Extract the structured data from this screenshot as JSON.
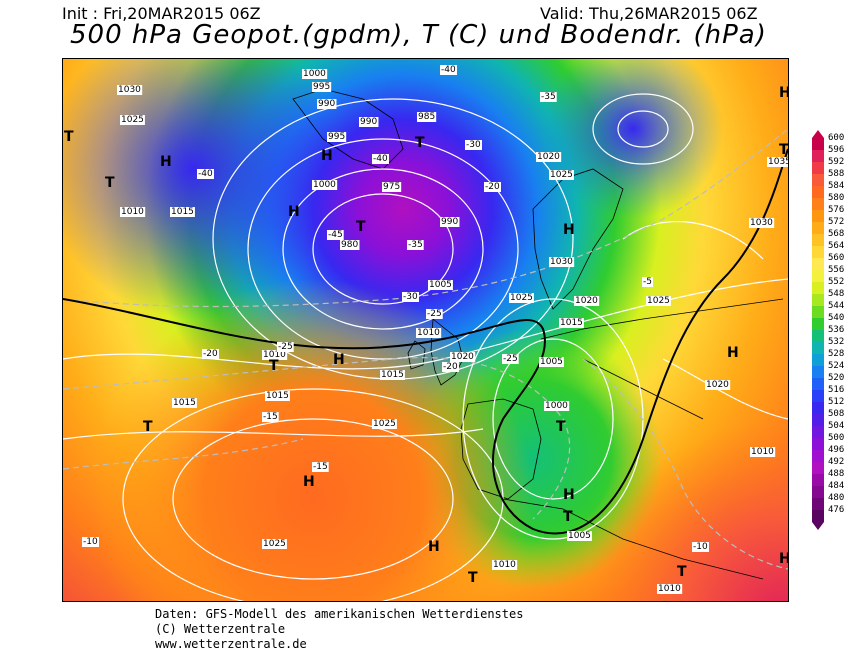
{
  "header": {
    "init": "Init : Fri,20MAR2015 06Z",
    "valid": "Valid: Thu,26MAR2015 06Z",
    "title": "500 hPa Geopot.(gpdm), T (C) und Bodendr. (hPa)"
  },
  "legend": {
    "values": [
      "600",
      "596",
      "592",
      "588",
      "584",
      "580",
      "576",
      "572",
      "568",
      "564",
      "560",
      "556",
      "552",
      "548",
      "544",
      "540",
      "536",
      "532",
      "528",
      "524",
      "520",
      "516",
      "512",
      "508",
      "504",
      "500",
      "496",
      "492",
      "488",
      "484",
      "480",
      "476"
    ],
    "colors": [
      "#c8004a",
      "#e0205a",
      "#f03a48",
      "#f85a3a",
      "#ff6a20",
      "#ff7f1a",
      "#ff9612",
      "#ffac18",
      "#ffc224",
      "#ffd838",
      "#ffe850",
      "#f4f040",
      "#d8f020",
      "#a8e820",
      "#6cdc20",
      "#30cc30",
      "#14c078",
      "#10b4b0",
      "#10a0d8",
      "#1880f0",
      "#2060f8",
      "#2a40f8",
      "#3828f0",
      "#5020e8",
      "#7018e0",
      "#8c10d8",
      "#a010d0",
      "#b010c0",
      "#9a0aa8",
      "#840890",
      "#6e0678",
      "#580460"
    ]
  },
  "map": {
    "pressure_labels": [
      "1000",
      "995",
      "990",
      "1030",
      "1025",
      "1010",
      "1015",
      "995",
      "1000",
      "975",
      "990",
      "985",
      "980",
      "990",
      "1005",
      "1020",
      "1025",
      "1030",
      "1025",
      "1020",
      "1015",
      "1010",
      "1005",
      "1025",
      "1015",
      "1010",
      "1020",
      "1000",
      "1005",
      "1010",
      "1020",
      "1015",
      "1015",
      "1025",
      "1025",
      "1010",
      "1010",
      "1030",
      "1035"
    ],
    "temp_labels": [
      "-40",
      "-40",
      "-35",
      "-30",
      "-25",
      "-20",
      "-15",
      "-10",
      "-25",
      "-30",
      "-35",
      "-40",
      "-45",
      "-20",
      "-15",
      "-10",
      "-5",
      "-20",
      "-25"
    ],
    "highs": [
      "H",
      "H",
      "H",
      "H",
      "H",
      "H",
      "H",
      "H",
      "H",
      "H",
      "H"
    ],
    "lows": [
      "T",
      "T",
      "T",
      "T",
      "T",
      "T",
      "T",
      "T",
      "T",
      "T",
      "T"
    ]
  },
  "footer": {
    "line1": "Daten: GFS-Modell des amerikanischen Wetterdienstes",
    "line2": "(C) Wetterzentrale",
    "line3": "www.wetterzentrale.de"
  }
}
